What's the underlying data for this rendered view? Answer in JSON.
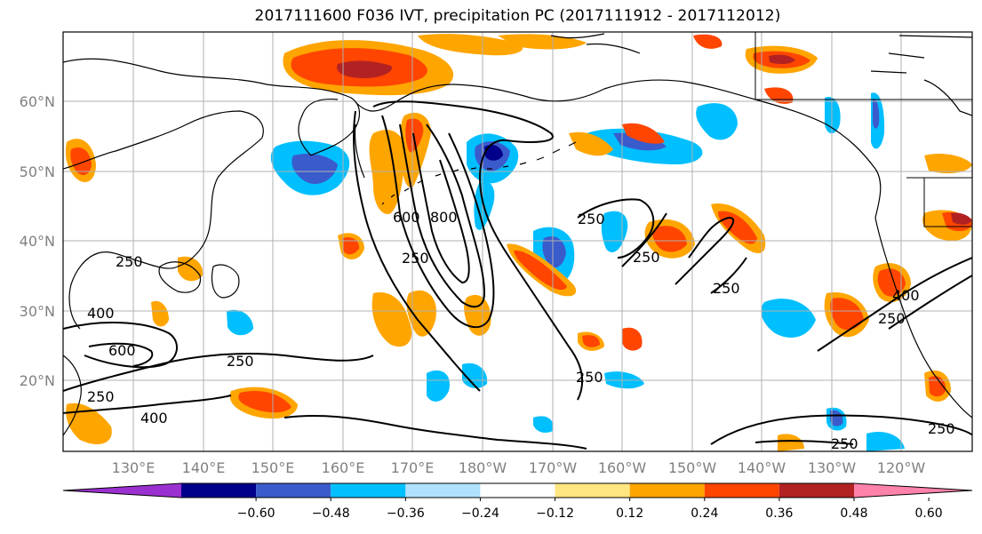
{
  "title": "2017111600 F036 IVT, precipitation PC (2017111912 - 2017112012)",
  "lat_labels": [
    "60°N",
    "50°N",
    "40°N",
    "30°N",
    "20°N"
  ],
  "lon_labels": [
    "130°E",
    "140°E",
    "150°E",
    "160°E",
    "170°E",
    "180°W",
    "170°W",
    "160°W",
    "150°W",
    "140°W",
    "130°W",
    "120°W"
  ],
  "colorbar": {
    "ticks": [
      "−0.60",
      "−0.48",
      "−0.36",
      "−0.24",
      "−0.12",
      "0.12",
      "0.24",
      "0.36",
      "0.48",
      "0.60"
    ],
    "colors": [
      "#9b30d0",
      "#00008b",
      "#3a5bcc",
      "#00bfff",
      "#b0e2ff",
      "#ffffff",
      "#ffe680",
      "#ffa500",
      "#ff4500",
      "#b22222",
      "#ff82ab"
    ]
  },
  "contour_labels": [
    "250",
    "250",
    "400",
    "600",
    "250",
    "250",
    "400",
    "600",
    "800",
    "250",
    "250",
    "250",
    "250",
    "250",
    "400",
    "250",
    "250"
  ],
  "colors": {
    "land_line": "#000000",
    "grid": "#b0b0b0",
    "contour": "#000000"
  }
}
